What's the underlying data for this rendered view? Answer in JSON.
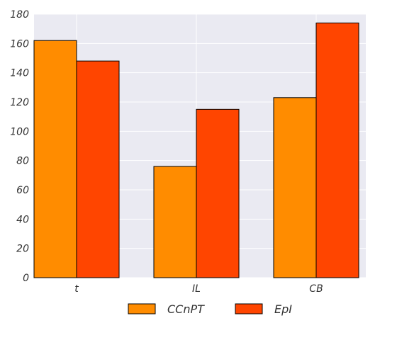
{
  "chart_data": {
    "type": "bar",
    "categories": [
      "t",
      "IL",
      "CB"
    ],
    "series": [
      {
        "name": "CCnPT",
        "values": [
          162,
          76,
          123
        ],
        "color": "#FF8C00"
      },
      {
        "name": "EpI",
        "values": [
          148,
          115,
          174
        ],
        "color": "#FF4500"
      }
    ],
    "title": "",
    "xlabel": "",
    "ylabel": "",
    "ylim": [
      0,
      180
    ],
    "yticks": [
      0,
      20,
      40,
      60,
      80,
      100,
      120,
      140,
      160,
      180
    ],
    "grid": true,
    "background": "#EAEAF2",
    "legend_position": "bottom-center"
  }
}
